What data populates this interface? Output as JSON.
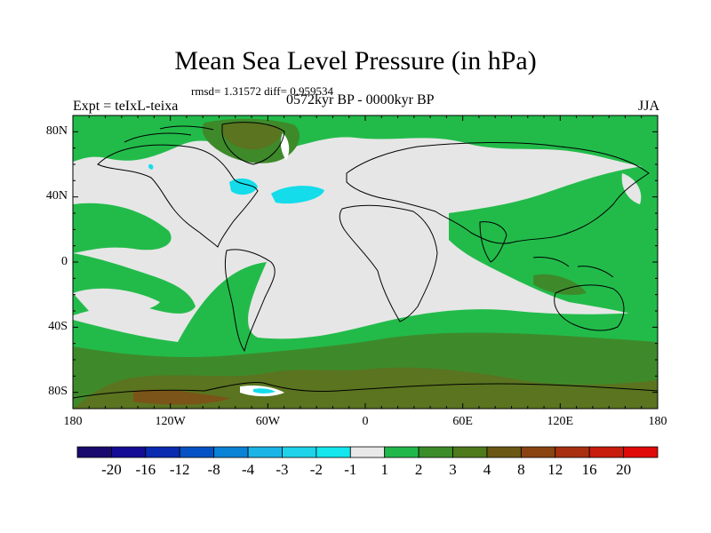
{
  "title": "Mean Sea Level Pressure (in hPa)",
  "stats": "rmsd= 1.31572 diff= 0.959534",
  "left_label": "Expt = teIxL-teixa",
  "center_label": "0572kyr BP - 0000kyr BP",
  "right_label": "JJA",
  "lat_ticks": [
    "80N",
    "40N",
    "0",
    "40S",
    "80S"
  ],
  "lon_ticks": [
    "180",
    "120W",
    "60W",
    "0",
    "60E",
    "120E",
    "180"
  ],
  "colorbar": {
    "labels": [
      "-20",
      "-16",
      "-12",
      "-8",
      "-4",
      "-3",
      "-2",
      "-1",
      "1",
      "2",
      "3",
      "4",
      "8",
      "12",
      "16",
      "20"
    ],
    "colors": [
      "#1a0a6e",
      "#140c96",
      "#0a2ab0",
      "#0552c4",
      "#0a82d6",
      "#1ab4e6",
      "#1ed2ea",
      "#14e6ee",
      "#e8e8e8",
      "#20b84a",
      "#3c8c2a",
      "#4e7a1c",
      "#6a5814",
      "#8a4412",
      "#a83010",
      "#c81c0c",
      "#e00a0a"
    ]
  },
  "legend_colors": {
    "near_zero": "#e6e6e6",
    "positive_1_2": "#22bb4a",
    "positive_2_3": "#3e8a2a",
    "positive_3_4": "#5a7420",
    "positive_4_8": "#7a5418",
    "negative_small": "#14dcea",
    "ocean_outline": "#000000"
  }
}
